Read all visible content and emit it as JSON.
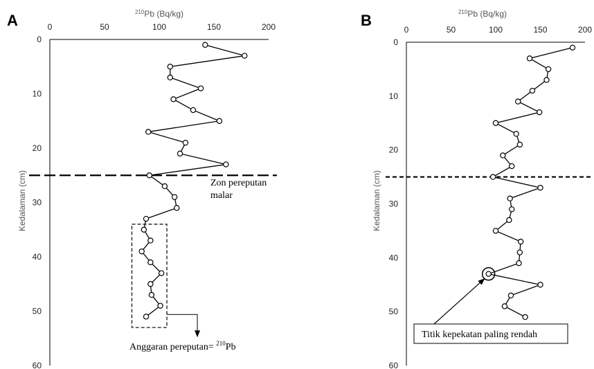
{
  "chart_data": [
    {
      "type": "line",
      "panel": "A",
      "x_axis_title": {
        "pre": "210",
        "text": "Pb (Bq/kg)"
      },
      "y_axis_title": "Kedalaman (cm)",
      "xlim": [
        0,
        200
      ],
      "ylim": [
        0,
        60
      ],
      "y_inverted": true,
      "x_ticks": [
        "0",
        "50",
        "100",
        "150",
        "200"
      ],
      "y_ticks": [
        "0",
        "10",
        "20",
        "30",
        "40",
        "50",
        "60"
      ],
      "x_axis_position": "top",
      "grid": false,
      "legend": "none",
      "series": [
        {
          "points": [
            {
              "x": 142,
              "y": 1
            },
            {
              "x": 178,
              "y": 3
            },
            {
              "x": 110,
              "y": 5
            },
            {
              "x": 110,
              "y": 7
            },
            {
              "x": 138,
              "y": 9
            },
            {
              "x": 113,
              "y": 11
            },
            {
              "x": 131,
              "y": 13
            },
            {
              "x": 155,
              "y": 15
            },
            {
              "x": 90,
              "y": 17
            },
            {
              "x": 124,
              "y": 19
            },
            {
              "x": 119,
              "y": 21
            },
            {
              "x": 161,
              "y": 23
            },
            {
              "x": 91,
              "y": 25
            },
            {
              "x": 105,
              "y": 27
            },
            {
              "x": 114,
              "y": 29
            },
            {
              "x": 116,
              "y": 31
            },
            {
              "x": 88,
              "y": 33
            },
            {
              "x": 86,
              "y": 35
            },
            {
              "x": 92,
              "y": 37
            },
            {
              "x": 84,
              "y": 39
            },
            {
              "x": 92,
              "y": 41
            },
            {
              "x": 102,
              "y": 43
            },
            {
              "x": 92,
              "y": 45
            },
            {
              "x": 93,
              "y": 47
            },
            {
              "x": 101,
              "y": 49
            },
            {
              "x": 88,
              "y": 51
            }
          ]
        }
      ],
      "reference_line": {
        "y": 25,
        "style": "long-dash"
      },
      "annotations": {
        "mixing_zone_line1": "Zon pereputan",
        "mixing_zone_line2": "malar",
        "estimate_text": "Anggaran pereputan= ",
        "estimate_sup": "210",
        "estimate_after": "Pb"
      },
      "highlight_box": {
        "x_range": [
          75,
          107
        ],
        "y_range": [
          34,
          53
        ]
      }
    },
    {
      "type": "line",
      "panel": "B",
      "x_axis_title": {
        "pre": "210",
        "text": "Pb (Bq/kg)"
      },
      "y_axis_title": "Kedalaman (cm)",
      "xlim": [
        0,
        200
      ],
      "ylim": [
        0,
        60
      ],
      "y_inverted": true,
      "x_ticks": [
        "0",
        "50",
        "100",
        "150",
        "200"
      ],
      "y_ticks": [
        "0",
        "10",
        "20",
        "30",
        "40",
        "50",
        "60"
      ],
      "x_axis_position": "top",
      "grid": false,
      "legend": "none",
      "series": [
        {
          "points": [
            {
              "x": 186,
              "y": 1
            },
            {
              "x": 138,
              "y": 3
            },
            {
              "x": 159,
              "y": 5
            },
            {
              "x": 157,
              "y": 7
            },
            {
              "x": 141,
              "y": 9
            },
            {
              "x": 125,
              "y": 11
            },
            {
              "x": 149,
              "y": 13
            },
            {
              "x": 100,
              "y": 15
            },
            {
              "x": 123,
              "y": 17
            },
            {
              "x": 127,
              "y": 19
            },
            {
              "x": 108,
              "y": 21
            },
            {
              "x": 118,
              "y": 23
            },
            {
              "x": 97,
              "y": 25
            },
            {
              "x": 150,
              "y": 27
            },
            {
              "x": 116,
              "y": 29
            },
            {
              "x": 118,
              "y": 31
            },
            {
              "x": 115,
              "y": 33
            },
            {
              "x": 100,
              "y": 35
            },
            {
              "x": 128,
              "y": 37
            },
            {
              "x": 127,
              "y": 39
            },
            {
              "x": 126,
              "y": 41
            },
            {
              "x": 92,
              "y": 43
            },
            {
              "x": 150,
              "y": 45
            },
            {
              "x": 117,
              "y": 47
            },
            {
              "x": 110,
              "y": 49
            },
            {
              "x": 133,
              "y": 51
            }
          ]
        }
      ],
      "reference_line": {
        "y": 25,
        "style": "short-dash"
      },
      "annotations": {
        "lowest_point_label": "Titik kepekatan paling rendah"
      },
      "highlight_point": {
        "x": 92,
        "y": 43
      }
    }
  ]
}
